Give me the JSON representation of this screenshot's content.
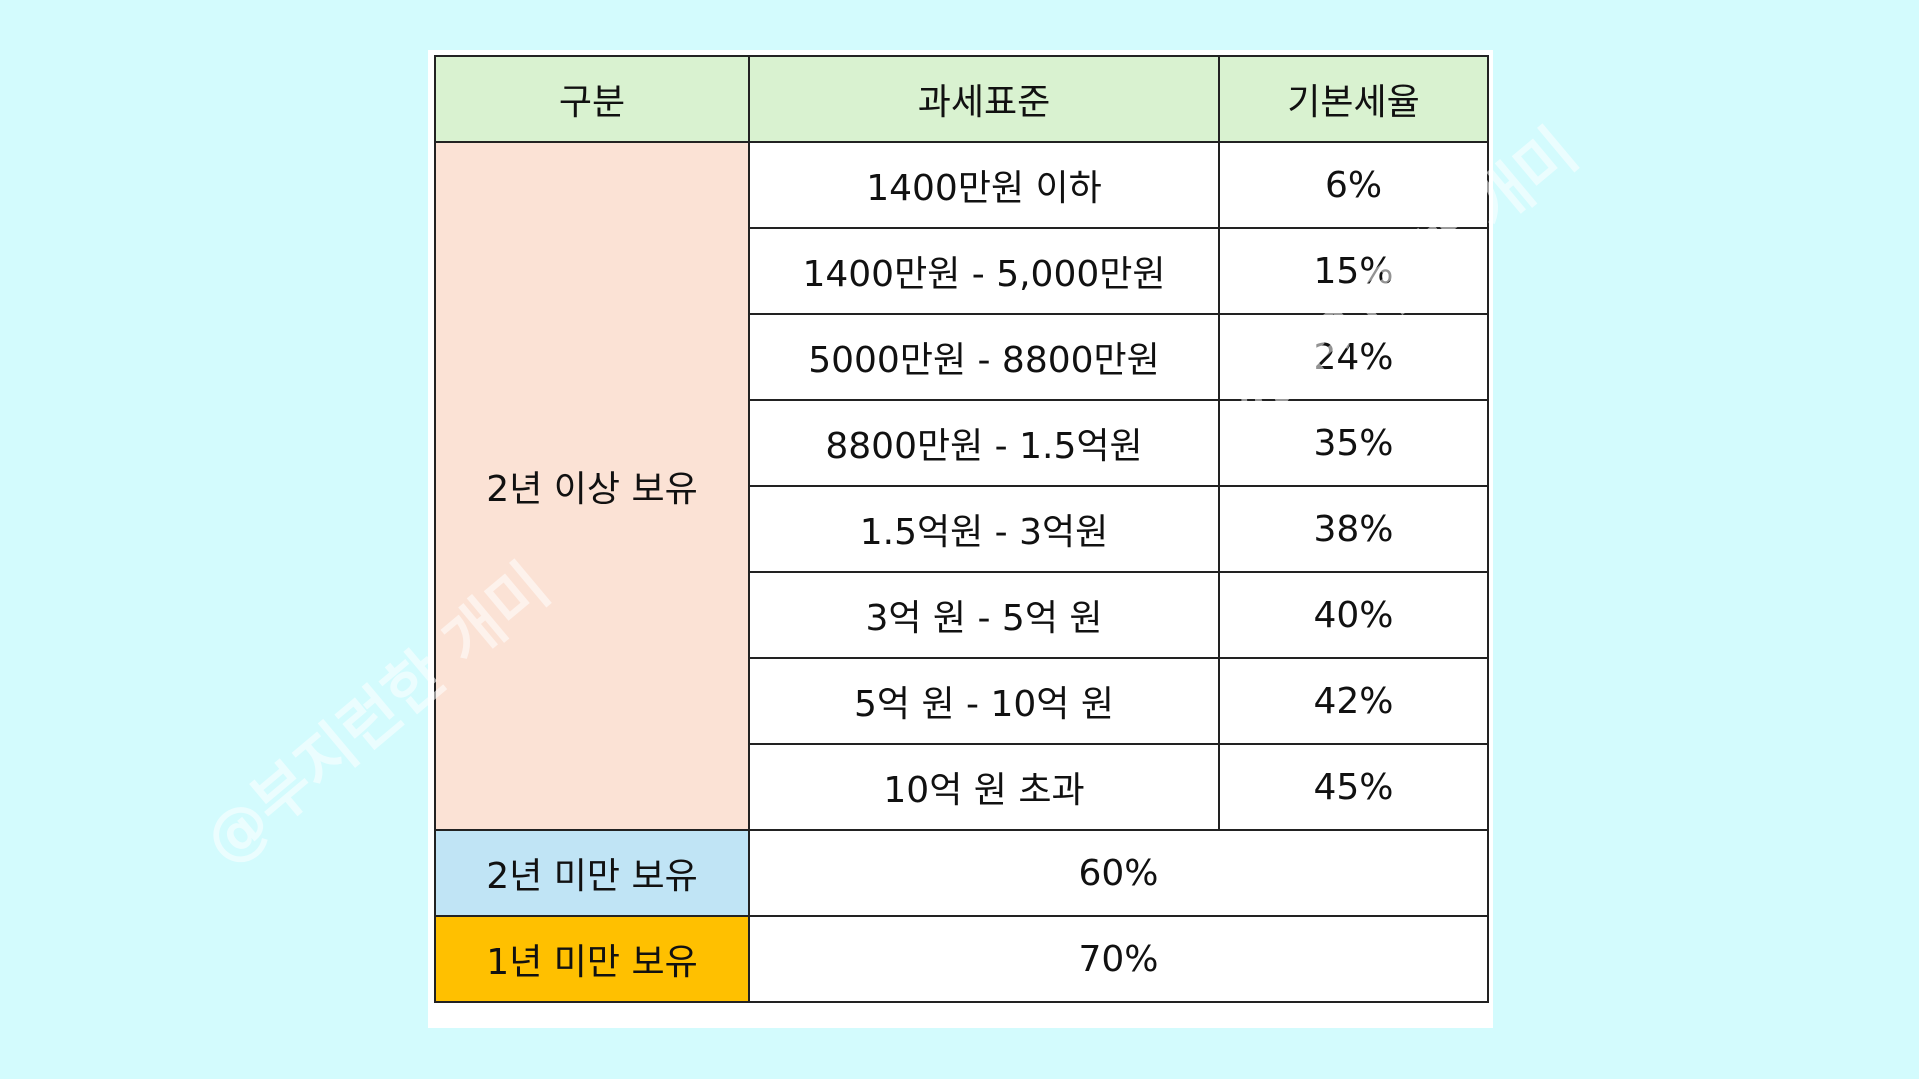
{
  "table": {
    "header": [
      "구분",
      "과세표준",
      "기본세율"
    ],
    "groups": [
      {
        "label": "2년 이상 보유",
        "rows": [
          [
            "1400만원 이하",
            "6%"
          ],
          [
            "1400만원 - 5,000만원",
            "15%"
          ],
          [
            "5000만원 - 8800만원",
            "24%"
          ],
          [
            "8800만원 - 1.5억원",
            "35%"
          ],
          [
            "1.5억원 - 3억원",
            "38%"
          ],
          [
            "3억 원 - 5억 원",
            "40%"
          ],
          [
            "5억 원 - 10억 원",
            "42%"
          ],
          [
            "10억 원 초과",
            "45%"
          ]
        ]
      },
      {
        "label": "2년 미만 보유",
        "rate": "60%"
      },
      {
        "label": "1년 미만 보유",
        "rate": "70%"
      }
    ]
  },
  "watermark": "@부지런한 개미"
}
